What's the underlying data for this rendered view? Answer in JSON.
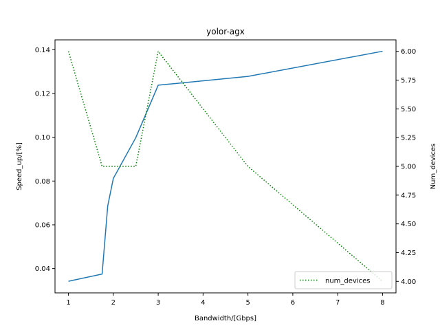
{
  "chart_data": {
    "type": "line",
    "title": "yolor-agx",
    "xlabel": "Bandwidth/[Gbps]",
    "ylabel_left": "Speed_up/[%]",
    "ylabel_right": "Num_devices",
    "xlim": [
      0.7,
      8.3
    ],
    "ylim_left": [
      0.0289,
      0.1445
    ],
    "ylim_right": [
      3.9,
      6.1
    ],
    "x_ticks": [
      1,
      2,
      3,
      4,
      5,
      6,
      7,
      8
    ],
    "y_left_ticks": [
      "0.04",
      "0.06",
      "0.08",
      "0.10",
      "0.12",
      "0.14"
    ],
    "y_right_ticks": [
      "4.00",
      "4.25",
      "4.50",
      "4.75",
      "5.00",
      "5.25",
      "5.50",
      "5.75",
      "6.00"
    ],
    "grid": false,
    "legend_position": "lower-right",
    "series": [
      {
        "axis": "left",
        "style": "solid",
        "color": "#1f77b4",
        "x": [
          1,
          1.75,
          1.875,
          2,
          2.5,
          3,
          5,
          8
        ],
        "y": [
          0.0342,
          0.0375,
          0.0686,
          0.0812,
          0.0998,
          0.1238,
          0.1278,
          0.1393
        ]
      },
      {
        "axis": "right",
        "name": "num_devices",
        "style": "dotted",
        "color": "#008000",
        "x": [
          1,
          1.75,
          2,
          2.5,
          3,
          5,
          8
        ],
        "y": [
          6,
          5,
          5,
          5,
          6,
          5,
          4
        ]
      }
    ]
  }
}
